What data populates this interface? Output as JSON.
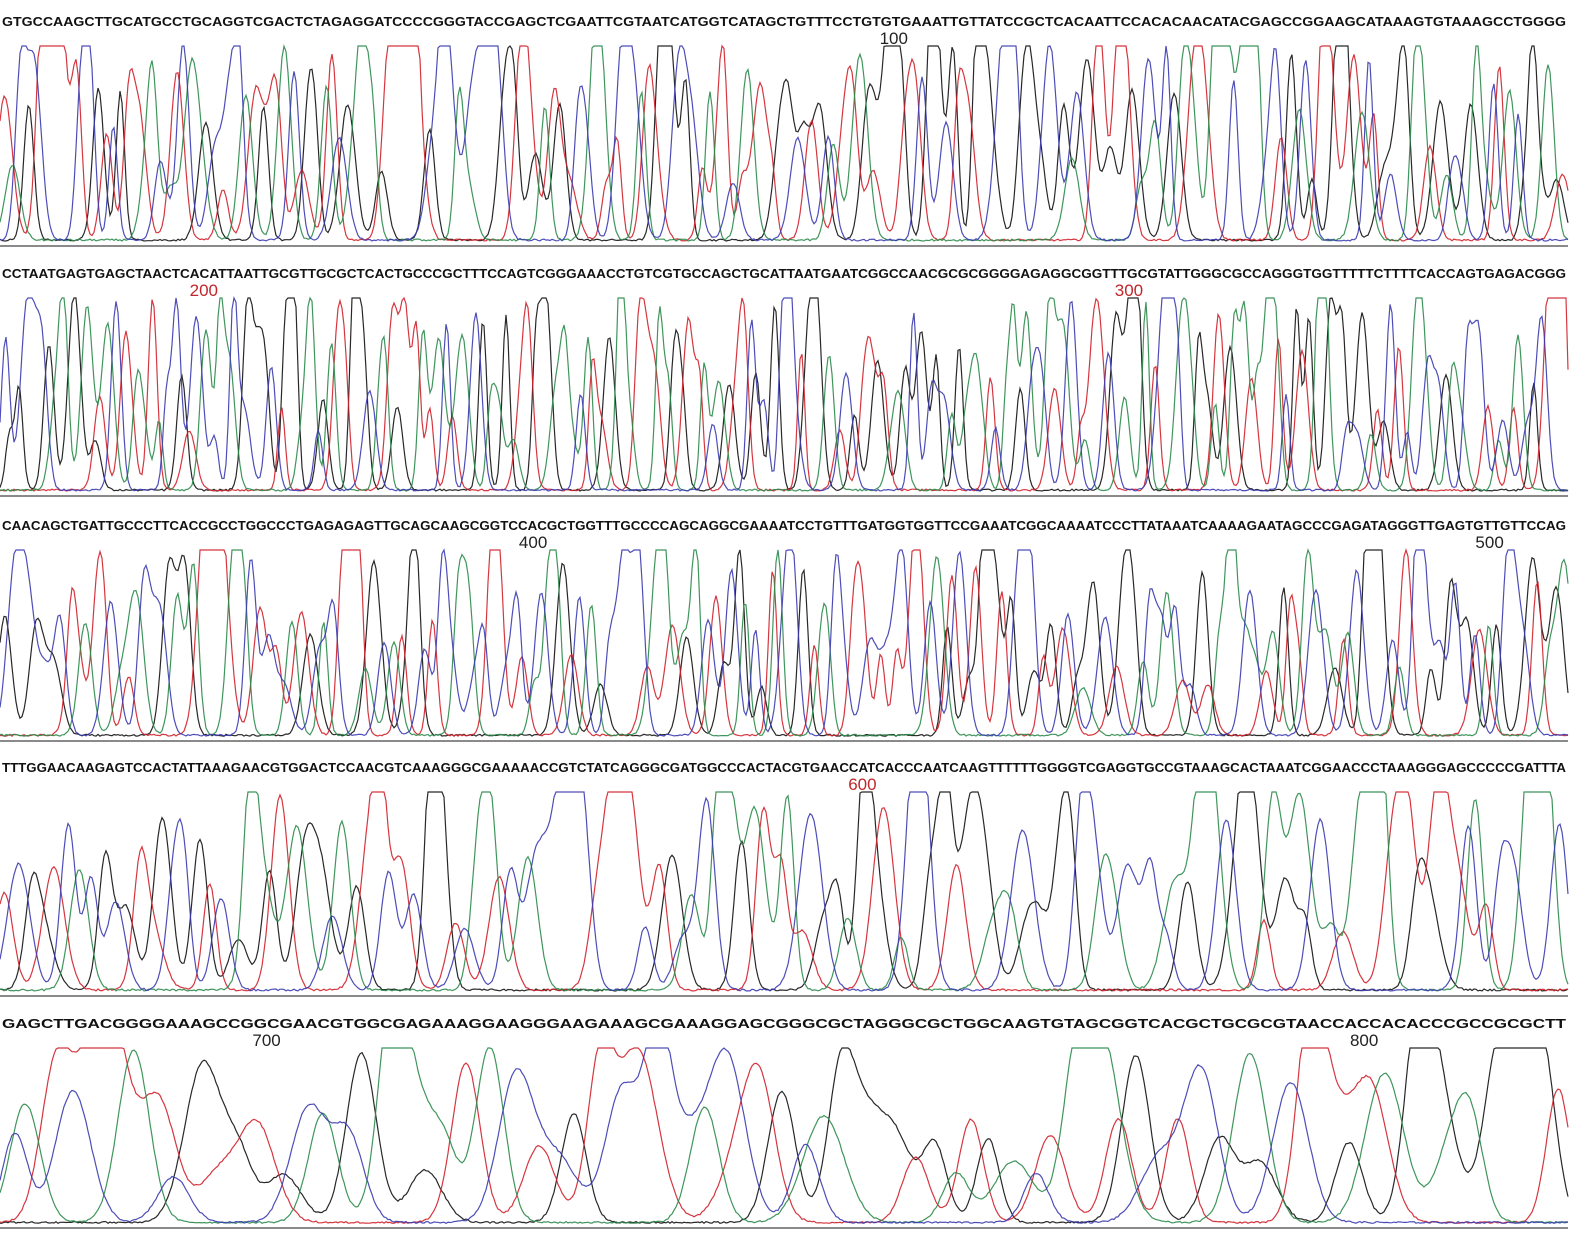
{
  "rows": [
    {
      "sequence": "GTGCCAAGCTTGCATGCCTGCAGGTCGACTCTAGAGGATCCCCGGGTACCGAGCTCGAATTCGTAATCATGGTCATAGCTGTTTCCTGTGTGAAATTGTTATCCGCTCACAATTCCACACAACATACGAGCCGGAAGCATAAAGTGTAAAGCCTGGGG",
      "positions": [
        "100"
      ]
    },
    {
      "sequence": "CCTAATGAGTGAGCTAACTCACATTAATTGCGTTGCGCTCACTGCCCGCTTTCCAGTCGGGAAACCTGTCGTGCCAGCTGCATTAATGAATCGGCCAACGCGCGGGGAGAGGCGGTTTGCGTATTGGGCGCCAGGGTGGTTTTTCTTTTCACCAGTGAGACGGG",
      "positions": [
        "200",
        "300"
      ]
    },
    {
      "sequence": "CAACAGCTGATTGCCCTTCACCGCCTGGCCCTGAGAGAGTTGCAGCAAGCGGTCCACGCTGGTTTGCCCCAGCAGGCGAAAATCCTGTTTGATGGTGGTTCCGAAATCGGCAAAATCCCTTATAAATCAAAAGAATAGCCCGAGATAGGGTTGAGTGTTGTTCCAG",
      "positions": [
        "400",
        "500"
      ]
    },
    {
      "sequence": "TTTGGAACAAGAGTCCACTATTAAAGAACGTGGACTCCAACGTCAAAGGGCGAAAAACCGTCTATCAGGGCGATGGCCCACTACGTGAACCATCACCCAATCAAGTTTTTTGGGGTCGAGGTGCCGTAAAGCACTAAATCGGAACCCTAAAGGGAGCCCCCGATTTA",
      "positions": [
        "600"
      ]
    },
    {
      "sequence": "GAGCTTGACGGGGAAAGCCGGCGAACGTGGCGAGAAAGGAAGGGAAGAAAGCGAAAGGAGCGGGCGCTAGGGCGCTGGCAAGTGTAGCGGTCACGCTGCGCGTAACCACCACACCCGCCGCGCTT",
      "positions": [
        "700",
        "800"
      ]
    }
  ]
}
